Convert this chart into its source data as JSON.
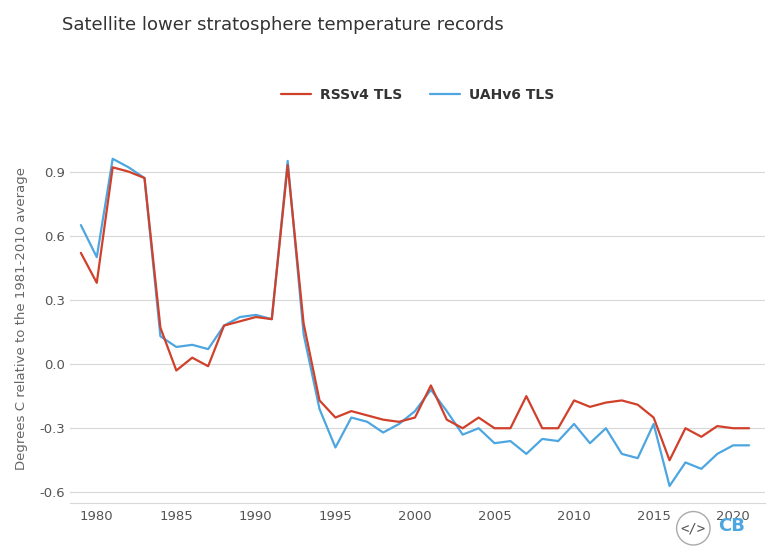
{
  "title": "Satellite lower stratosphere temperature records",
  "ylabel": "Degrees C relative to the 1981-2010 average",
  "legend_labels": [
    "RSSv4 TLS",
    "UAHv6 TLS"
  ],
  "rss_color": "#d0402a",
  "uah_color": "#4da6e0",
  "background_color": "#ffffff",
  "grid_color": "#d8d8d8",
  "ylim": [
    -0.65,
    1.08
  ],
  "years": [
    1979,
    1980,
    1981,
    1982,
    1983,
    1984,
    1985,
    1986,
    1987,
    1988,
    1989,
    1990,
    1991,
    1992,
    1993,
    1994,
    1995,
    1996,
    1997,
    1998,
    1999,
    2000,
    2001,
    2002,
    2003,
    2004,
    2005,
    2006,
    2007,
    2008,
    2009,
    2010,
    2011,
    2012,
    2013,
    2014,
    2015,
    2016,
    2017,
    2018,
    2019,
    2020,
    2021
  ],
  "rss_values": [
    0.52,
    0.38,
    0.92,
    0.9,
    0.87,
    0.17,
    -0.03,
    0.03,
    -0.01,
    0.18,
    0.2,
    0.22,
    0.21,
    0.93,
    0.19,
    -0.17,
    -0.25,
    -0.22,
    -0.24,
    -0.26,
    -0.27,
    -0.25,
    -0.1,
    -0.26,
    -0.3,
    -0.25,
    -0.3,
    -0.3,
    -0.15,
    -0.3,
    -0.3,
    -0.17,
    -0.2,
    -0.18,
    -0.17,
    -0.19,
    -0.25,
    -0.45,
    -0.3,
    -0.34,
    -0.29,
    -0.3,
    -0.3
  ],
  "uah_values": [
    0.65,
    0.5,
    0.96,
    0.92,
    0.87,
    0.13,
    0.08,
    0.09,
    0.07,
    0.18,
    0.22,
    0.23,
    0.21,
    0.95,
    0.14,
    -0.21,
    -0.39,
    -0.25,
    -0.27,
    -0.32,
    -0.28,
    -0.22,
    -0.12,
    -0.22,
    -0.33,
    -0.3,
    -0.37,
    -0.36,
    -0.42,
    -0.35,
    -0.36,
    -0.28,
    -0.37,
    -0.3,
    -0.42,
    -0.44,
    -0.28,
    -0.57,
    -0.46,
    -0.49,
    -0.42,
    -0.38,
    -0.38
  ],
  "yticks": [
    -0.6,
    -0.3,
    0.0,
    0.3,
    0.6,
    0.9
  ],
  "xticks": [
    1980,
    1985,
    1990,
    1995,
    2000,
    2005,
    2010,
    2015,
    2020
  ],
  "xlim": [
    1978.3,
    2022.0
  ],
  "line_width": 1.6,
  "title_fontsize": 13,
  "label_fontsize": 9.5,
  "tick_fontsize": 9.5,
  "legend_fontsize": 10,
  "tick_color": "#555555",
  "title_color": "#333333",
  "label_color": "#666666"
}
